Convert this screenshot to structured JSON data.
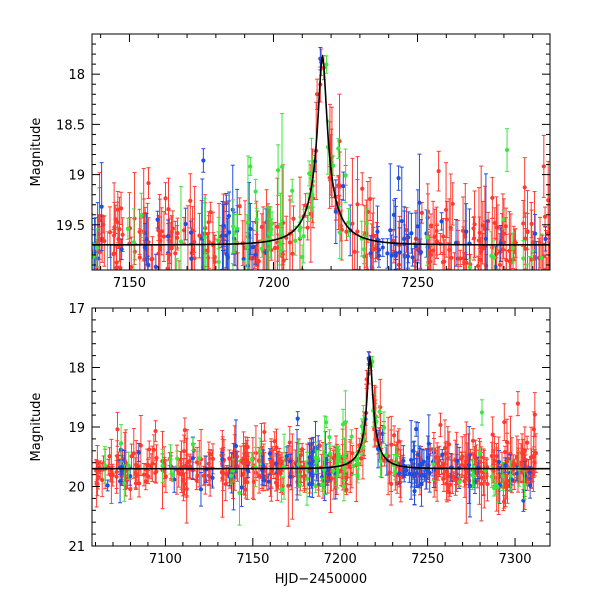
{
  "colors": {
    "red": "#ff3b30",
    "green": "#3ce63c",
    "blue": "#1f4fe0",
    "model": "#000000"
  },
  "chart_data": [
    {
      "type": "scatter",
      "title": "",
      "xlabel": "",
      "ylabel": "Magnitude",
      "xlim": [
        7137,
        7296
      ],
      "ylim": [
        19.95,
        17.6
      ],
      "y_inverted": true,
      "x_ticks": [
        7150,
        7200,
        7250
      ],
      "x_tick_labels": [
        "7150",
        "7200",
        "7250"
      ],
      "y_ticks": [
        18,
        18.5,
        19,
        19.5
      ],
      "y_tick_labels": [
        "18",
        "18.5",
        "19",
        "19.5"
      ],
      "series": [
        {
          "name": "red",
          "color": "red",
          "description": "dense photometry with error bars"
        },
        {
          "name": "green",
          "color": "green"
        },
        {
          "name": "blue",
          "color": "blue"
        }
      ],
      "model_curve": {
        "color": "model",
        "peak_x": 7217,
        "peak_mag": 17.83,
        "baseline_mag": 19.7
      }
    },
    {
      "type": "scatter",
      "title": "",
      "xlabel": "HJD−2450000",
      "ylabel": "Magnitude",
      "xlim": [
        7058,
        7320
      ],
      "ylim": [
        21,
        17
      ],
      "y_inverted": true,
      "x_ticks": [
        7100,
        7150,
        7200,
        7250,
        7300
      ],
      "x_tick_labels": [
        "7100",
        "7150",
        "7200",
        "7250",
        "7300"
      ],
      "y_ticks": [
        17,
        18,
        19,
        20,
        21
      ],
      "y_tick_labels": [
        "17",
        "18",
        "19",
        "20",
        "21"
      ],
      "series": [
        {
          "name": "red",
          "color": "red"
        },
        {
          "name": "green",
          "color": "green"
        },
        {
          "name": "blue",
          "color": "blue"
        }
      ],
      "model_curve": {
        "color": "model",
        "peak_x": 7217,
        "peak_mag": 17.83,
        "baseline_mag": 19.7
      }
    }
  ]
}
